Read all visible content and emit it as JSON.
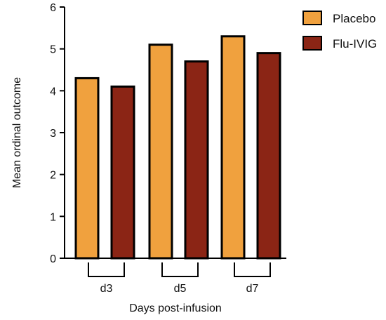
{
  "chart_data": {
    "type": "bar",
    "title": "",
    "xlabel": "Days post-infusion",
    "ylabel": "Mean ordinal outcome",
    "categories": [
      "d3",
      "d5",
      "d7"
    ],
    "series": [
      {
        "name": "Placebo",
        "color": "#F0A13E",
        "values": [
          4.3,
          5.1,
          5.3
        ]
      },
      {
        "name": "Flu-IVIG",
        "color": "#8B2515",
        "values": [
          4.1,
          4.7,
          4.9
        ]
      }
    ],
    "ylim": [
      0,
      6
    ],
    "yticks": [
      "0",
      "1",
      "2",
      "3",
      "4",
      "5",
      "6"
    ],
    "grid": false,
    "legend_position": "top-right"
  }
}
